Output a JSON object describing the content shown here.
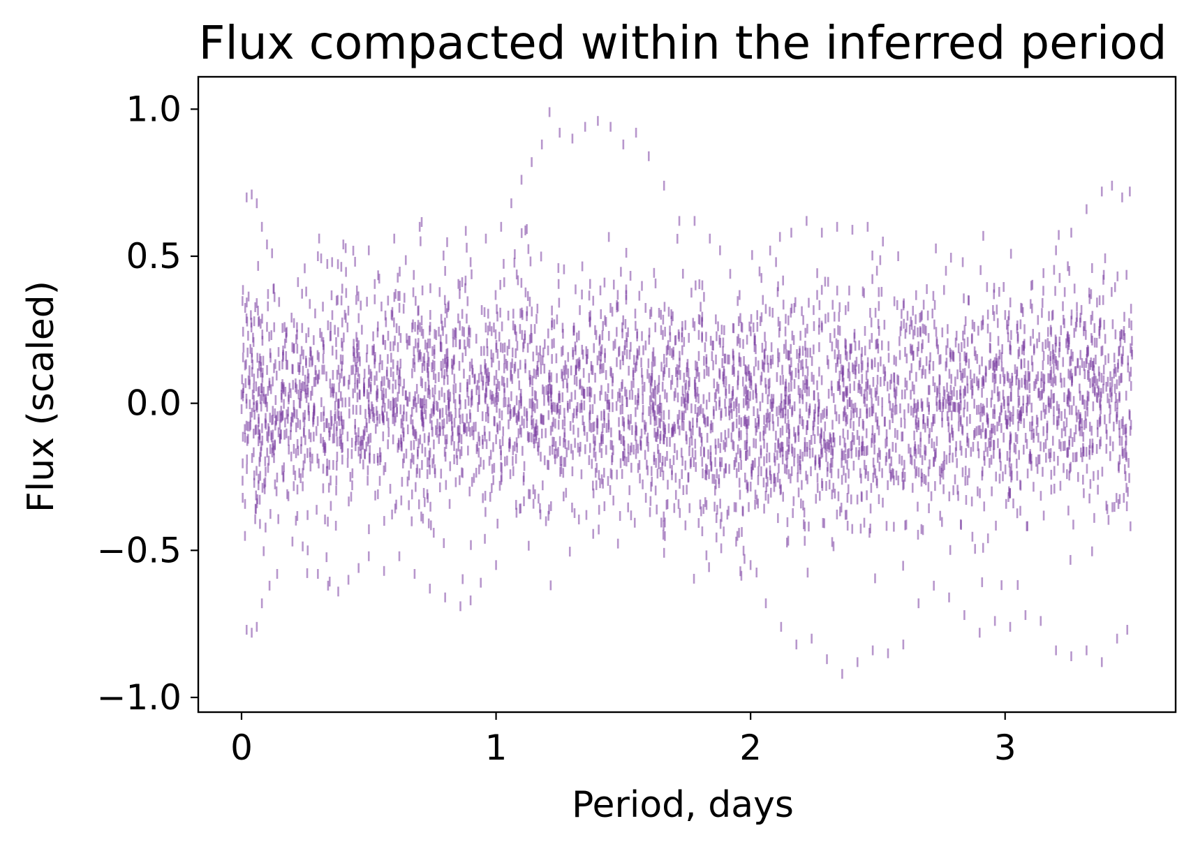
{
  "chart_data": {
    "type": "scatter",
    "title": "Flux compacted within the inferred period",
    "xlabel": "Period, days",
    "ylabel": "Flux (scaled)",
    "xlim": [
      -0.17,
      3.67
    ],
    "ylim": [
      -1.05,
      1.11
    ],
    "x_ticks": [
      0,
      1,
      2,
      3
    ],
    "x_tick_labels": [
      "0",
      "1",
      "2",
      "3"
    ],
    "y_ticks": [
      1.0,
      0.5,
      0.0,
      -0.5,
      -1.0
    ],
    "y_tick_labels": [
      "1.0",
      "0.5",
      "0.0",
      "−0.5",
      "−1.0"
    ],
    "marker": "vertical-dash",
    "color": "#7b3fa2",
    "alpha": 0.55,
    "grid": false,
    "series": [
      {
        "values": [
          {
            "x": 0.02,
            "y": 0.7
          },
          {
            "x": 0.04,
            "y": 0.71
          },
          {
            "x": 0.06,
            "y": 0.68
          },
          {
            "x": 0.08,
            "y": 0.6
          },
          {
            "x": 0.1,
            "y": 0.54
          },
          {
            "x": 0.12,
            "y": 0.51
          },
          {
            "x": 0.02,
            "y": -0.77
          },
          {
            "x": 0.04,
            "y": -0.78
          },
          {
            "x": 0.06,
            "y": -0.76
          },
          {
            "x": 0.08,
            "y": -0.68
          },
          {
            "x": 0.11,
            "y": -0.62
          },
          {
            "x": 0.14,
            "y": -0.58
          },
          {
            "x": 0.2,
            "y": -0.47
          },
          {
            "x": 0.26,
            "y": -0.5
          },
          {
            "x": 0.3,
            "y": -0.58
          },
          {
            "x": 0.34,
            "y": -0.62
          },
          {
            "x": 0.38,
            "y": -0.64
          },
          {
            "x": 0.42,
            "y": -0.6
          },
          {
            "x": 0.46,
            "y": -0.56
          },
          {
            "x": 0.5,
            "y": -0.52
          },
          {
            "x": 0.56,
            "y": -0.57
          },
          {
            "x": 0.62,
            "y": -0.52
          },
          {
            "x": 0.68,
            "y": -0.58
          },
          {
            "x": 0.74,
            "y": -0.63
          },
          {
            "x": 0.8,
            "y": -0.66
          },
          {
            "x": 0.86,
            "y": -0.69
          },
          {
            "x": 0.9,
            "y": -0.67
          },
          {
            "x": 0.94,
            "y": -0.61
          },
          {
            "x": 1.0,
            "y": -0.55
          },
          {
            "x": 0.3,
            "y": 0.5
          },
          {
            "x": 0.4,
            "y": 0.54
          },
          {
            "x": 0.5,
            "y": 0.52
          },
          {
            "x": 0.6,
            "y": 0.56
          },
          {
            "x": 0.7,
            "y": 0.6
          },
          {
            "x": 0.8,
            "y": 0.45
          },
          {
            "x": 0.9,
            "y": 0.48
          },
          {
            "x": 0.96,
            "y": 0.56
          },
          {
            "x": 1.02,
            "y": 0.6
          },
          {
            "x": 1.06,
            "y": 0.68
          },
          {
            "x": 1.1,
            "y": 0.76
          },
          {
            "x": 1.14,
            "y": 0.82
          },
          {
            "x": 1.18,
            "y": 0.88
          },
          {
            "x": 1.21,
            "y": 0.99
          },
          {
            "x": 1.25,
            "y": 0.92
          },
          {
            "x": 1.3,
            "y": 0.9
          },
          {
            "x": 1.35,
            "y": 0.94
          },
          {
            "x": 1.4,
            "y": 0.96
          },
          {
            "x": 1.45,
            "y": 0.94
          },
          {
            "x": 1.5,
            "y": 0.88
          },
          {
            "x": 1.55,
            "y": 0.92
          },
          {
            "x": 1.6,
            "y": 0.84
          },
          {
            "x": 1.66,
            "y": 0.74
          },
          {
            "x": 1.72,
            "y": 0.62
          },
          {
            "x": 1.78,
            "y": 0.62
          },
          {
            "x": 1.84,
            "y": 0.56
          },
          {
            "x": 1.88,
            "y": 0.52
          },
          {
            "x": 1.92,
            "y": 0.44
          },
          {
            "x": 2.0,
            "y": -0.55
          },
          {
            "x": 2.06,
            "y": -0.68
          },
          {
            "x": 2.12,
            "y": -0.76
          },
          {
            "x": 2.18,
            "y": -0.82
          },
          {
            "x": 2.24,
            "y": -0.8
          },
          {
            "x": 2.3,
            "y": -0.87
          },
          {
            "x": 2.36,
            "y": -0.92
          },
          {
            "x": 2.42,
            "y": -0.88
          },
          {
            "x": 2.48,
            "y": -0.84
          },
          {
            "x": 2.54,
            "y": -0.85
          },
          {
            "x": 2.6,
            "y": -0.82
          },
          {
            "x": 2.66,
            "y": -0.68
          },
          {
            "x": 2.72,
            "y": -0.62
          },
          {
            "x": 2.78,
            "y": -0.66
          },
          {
            "x": 2.84,
            "y": -0.72
          },
          {
            "x": 2.9,
            "y": -0.78
          },
          {
            "x": 2.96,
            "y": -0.74
          },
          {
            "x": 3.02,
            "y": -0.76
          },
          {
            "x": 3.08,
            "y": -0.72
          },
          {
            "x": 3.14,
            "y": -0.74
          },
          {
            "x": 3.2,
            "y": -0.84
          },
          {
            "x": 3.26,
            "y": -0.86
          },
          {
            "x": 3.32,
            "y": -0.84
          },
          {
            "x": 3.38,
            "y": -0.88
          },
          {
            "x": 3.44,
            "y": -0.8
          },
          {
            "x": 3.48,
            "y": -0.77
          },
          {
            "x": 2.1,
            "y": 0.48
          },
          {
            "x": 2.16,
            "y": 0.58
          },
          {
            "x": 2.22,
            "y": 0.62
          },
          {
            "x": 2.28,
            "y": 0.58
          },
          {
            "x": 2.34,
            "y": 0.6
          },
          {
            "x": 2.4,
            "y": 0.59
          },
          {
            "x": 2.46,
            "y": 0.6
          },
          {
            "x": 2.52,
            "y": 0.55
          },
          {
            "x": 2.58,
            "y": 0.5
          },
          {
            "x": 3.2,
            "y": 0.52
          },
          {
            "x": 3.26,
            "y": 0.58
          },
          {
            "x": 3.32,
            "y": 0.66
          },
          {
            "x": 3.38,
            "y": 0.72
          },
          {
            "x": 3.42,
            "y": 0.74
          },
          {
            "x": 3.46,
            "y": 0.7
          },
          {
            "x": 3.49,
            "y": 0.72
          }
        ]
      }
    ]
  }
}
